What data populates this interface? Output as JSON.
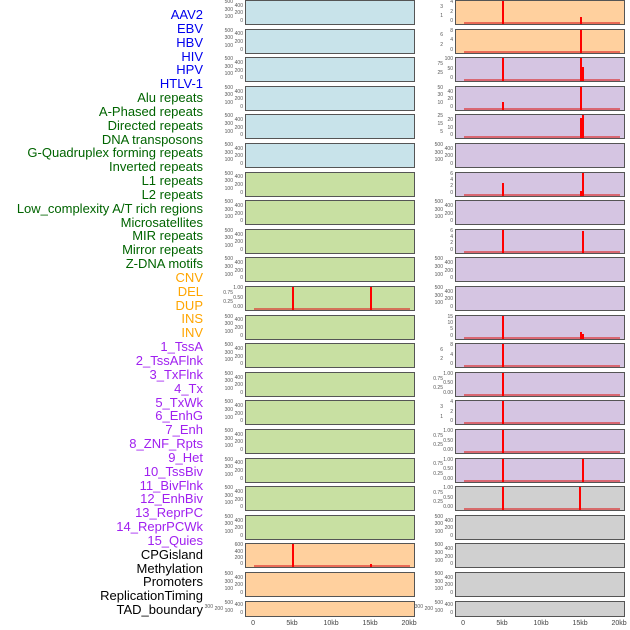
{
  "colors": {
    "viral": "#0000ee",
    "repeat": "#006400",
    "sv": "#ffa500",
    "chromhmm": "#a020f0",
    "other": "#000000",
    "spike": "#ff0000"
  },
  "labels": [
    {
      "text": "AAV2",
      "group": "viral",
      "bg": "#c8e3ea"
    },
    {
      "text": "EBV",
      "group": "viral",
      "bg": "#c8e3ea"
    },
    {
      "text": "HBV",
      "group": "viral",
      "bg": "#c8e3ea"
    },
    {
      "text": "HIV",
      "group": "viral",
      "bg": "#c8e3ea"
    },
    {
      "text": "HPV",
      "group": "viral",
      "bg": "#c8e3ea"
    },
    {
      "text": "HTLV-1",
      "group": "viral",
      "bg": "#c8e3ea"
    },
    {
      "text": "Alu repeats",
      "group": "repeat",
      "bg": "#c8e0a2"
    },
    {
      "text": "A-Phased repeats",
      "group": "repeat",
      "bg": "#c8e0a2"
    },
    {
      "text": "Directed repeats",
      "group": "repeat",
      "bg": "#c8e0a2"
    },
    {
      "text": "DNA transposons",
      "group": "repeat",
      "bg": "#c8e0a2"
    },
    {
      "text": "G-Quadruplex forming repeats",
      "group": "repeat",
      "bg": "#c8e0a2"
    },
    {
      "text": "Inverted repeats",
      "group": "repeat",
      "bg": "#c8e0a2"
    },
    {
      "text": "L1 repeats",
      "group": "repeat",
      "bg": "#c8e0a2"
    },
    {
      "text": "L2 repeats",
      "group": "repeat",
      "bg": "#c8e0a2"
    },
    {
      "text": "Low_complexity A/T rich regions",
      "group": "repeat",
      "bg": "#c8e0a2"
    },
    {
      "text": "Microsatellites",
      "group": "repeat",
      "bg": "#c8e0a2"
    },
    {
      "text": "MIR repeats",
      "group": "repeat",
      "bg": "#c8e0a2"
    },
    {
      "text": "Mirror repeats",
      "group": "repeat",
      "bg": "#c8e0a2"
    },
    {
      "text": "Z-DNA motifs",
      "group": "repeat",
      "bg": "#c8e0a2"
    },
    {
      "text": "CNV",
      "group": "sv",
      "bg": "#ffd09e"
    },
    {
      "text": "DEL",
      "group": "sv",
      "bg": "#ffd09e"
    },
    {
      "text": "DUP",
      "group": "sv",
      "bg": "#ffd09e"
    },
    {
      "text": "INS",
      "group": "sv",
      "bg": "#ffd09e"
    },
    {
      "text": "INV",
      "group": "sv",
      "bg": "#ffd09e"
    },
    {
      "text": "1_TssA",
      "group": "chromhmm",
      "bg": "#d5c5e2"
    },
    {
      "text": "2_TssAFlnk",
      "group": "chromhmm",
      "bg": "#d5c5e2"
    },
    {
      "text": "3_TxFlnk",
      "group": "chromhmm",
      "bg": "#d5c5e2"
    },
    {
      "text": "4_Tx",
      "group": "chromhmm",
      "bg": "#d5c5e2"
    },
    {
      "text": "5_TxWk",
      "group": "chromhmm",
      "bg": "#d5c5e2"
    },
    {
      "text": "6_EnhG",
      "group": "chromhmm",
      "bg": "#d5c5e2"
    },
    {
      "text": "7_Enh",
      "group": "chromhmm",
      "bg": "#d5c5e2"
    },
    {
      "text": "8_ZNF_Rpts",
      "group": "chromhmm",
      "bg": "#d5c5e2"
    },
    {
      "text": "9_Het",
      "group": "chromhmm",
      "bg": "#d5c5e2"
    },
    {
      "text": "10_TssBiv",
      "group": "chromhmm",
      "bg": "#d5c5e2"
    },
    {
      "text": "11_BivFlnk",
      "group": "chromhmm",
      "bg": "#d5c5e2"
    },
    {
      "text": "12_EnhBiv",
      "group": "chromhmm",
      "bg": "#d5c5e2"
    },
    {
      "text": "13_ReprPC",
      "group": "chromhmm",
      "bg": "#d5c5e2"
    },
    {
      "text": "14_ReprPCWk",
      "group": "chromhmm",
      "bg": "#d5c5e2"
    },
    {
      "text": "15_Quies",
      "group": "chromhmm",
      "bg": "#d5c5e2"
    },
    {
      "text": "CPGisland",
      "group": "other",
      "bg": "#d0d0d0"
    },
    {
      "text": "Methylation",
      "group": "other",
      "bg": "#d0d0d0"
    },
    {
      "text": "Promoters",
      "group": "other",
      "bg": "#d0d0d0"
    },
    {
      "text": "ReplicationTiming",
      "group": "other",
      "bg": "#d0d0d0"
    },
    {
      "text": "TAD_boundary",
      "group": "other",
      "bg": "#d0d0d0"
    }
  ],
  "chart_data": {
    "type": "bar",
    "xlabel": "",
    "xlim_kb": [
      -1,
      21
    ],
    "xticks": [
      "0",
      "5kb",
      "10kb",
      "15kb",
      "20kb"
    ],
    "xtick_values_kb": [
      0,
      5,
      10,
      15,
      20
    ],
    "default_yticks": [
      "0",
      "100",
      "200",
      "300",
      "400",
      "500"
    ],
    "tracks": {
      "G-Quadruplex forming repeats": {
        "yticks": [
          "0.00",
          "0.25",
          "0.50",
          "0.75",
          "1.00"
        ],
        "max": 1,
        "spikes": [
          {
            "x": 5,
            "v": 1
          },
          {
            "x": 15,
            "v": 1
          }
        ]
      },
      "CNV": {
        "yticks": [
          "0",
          "200",
          "400",
          "600"
        ],
        "max": 600,
        "spikes": [
          {
            "x": 5,
            "v": 600
          },
          {
            "x": 15,
            "v": 80
          }
        ]
      },
      "INS": {
        "yticks": [
          "0",
          "1",
          "2",
          "3",
          "4"
        ],
        "max": 4,
        "spikes": [
          {
            "x": 5,
            "v": 4
          },
          {
            "x": 15,
            "v": 1.3
          }
        ]
      },
      "INV": {
        "yticks": [
          "0",
          "2",
          "4",
          "6",
          "8"
        ],
        "max": 8,
        "spikes": [
          {
            "x": 15,
            "v": 8
          }
        ]
      },
      "1_TssA": {
        "yticks": [
          "0",
          "25",
          "50",
          "75",
          "100"
        ],
        "max": 100,
        "spikes": [
          {
            "x": 5,
            "v": 100
          },
          {
            "x": 15,
            "v": 100
          },
          {
            "x": 15.2,
            "v": 60
          }
        ]
      },
      "2_TssAFlnk": {
        "yticks": [
          "0",
          "10",
          "20",
          "30",
          "40",
          "50"
        ],
        "max": 50,
        "spikes": [
          {
            "x": 5,
            "v": 18
          },
          {
            "x": 15,
            "v": 50
          }
        ]
      },
      "3_TxFlnk": {
        "yticks": [
          "0",
          "5",
          "10",
          "15",
          "20",
          "25"
        ],
        "max": 25,
        "spikes": [
          {
            "x": 15,
            "v": 22
          },
          {
            "x": 15.2,
            "v": 25
          }
        ]
      },
      "5_TxWk": {
        "yticks": [
          "0",
          "2",
          "4",
          "6"
        ],
        "max": 6,
        "spikes": [
          {
            "x": 5,
            "v": 3.3
          },
          {
            "x": 15,
            "v": 1.2
          },
          {
            "x": 15.2,
            "v": 6
          }
        ]
      },
      "7_Enh": {
        "yticks": [
          "0",
          "2",
          "4",
          "6"
        ],
        "max": 7,
        "spikes": [
          {
            "x": 5,
            "v": 7
          },
          {
            "x": 15.2,
            "v": 6.6
          }
        ]
      },
      "10_TssBiv": {
        "yticks": [
          "0",
          "5",
          "10",
          "15"
        ],
        "max": 18,
        "spikes": [
          {
            "x": 5,
            "v": 18
          },
          {
            "x": 15,
            "v": 5
          },
          {
            "x": 15.2,
            "v": 3.5
          }
        ]
      },
      "11_BivFlnk": {
        "yticks": [
          "0",
          "2",
          "4",
          "6",
          "8"
        ],
        "max": 8,
        "spikes": [
          {
            "x": 5,
            "v": 8
          }
        ]
      },
      "12_EnhBiv": {
        "yticks": [
          "0.00",
          "0.25",
          "0.50",
          "0.75",
          "1.00"
        ],
        "max": 1,
        "spikes": [
          {
            "x": 5,
            "v": 1
          }
        ]
      },
      "13_ReprPC": {
        "yticks": [
          "0",
          "1",
          "2",
          "3",
          "4"
        ],
        "max": 4,
        "spikes": [
          {
            "x": 5,
            "v": 4
          }
        ]
      },
      "14_ReprPCWk": {
        "yticks": [
          "0.00",
          "0.25",
          "0.50",
          "0.75",
          "1.00"
        ],
        "max": 1,
        "spikes": [
          {
            "x": 5,
            "v": 1
          }
        ]
      },
      "15_Quies": {
        "yticks": [
          "0.00",
          "0.25",
          "0.50",
          "0.75",
          "1.00"
        ],
        "max": 1,
        "spikes": [
          {
            "x": 5,
            "v": 1
          },
          {
            "x": 15.2,
            "v": 1
          }
        ]
      },
      "CPGisland": {
        "yticks": [
          "0.00",
          "0.25",
          "0.50",
          "0.75",
          "1.00"
        ],
        "max": 1,
        "spikes": [
          {
            "x": 5,
            "v": 1
          },
          {
            "x": 14.9,
            "v": 1
          }
        ]
      }
    }
  }
}
